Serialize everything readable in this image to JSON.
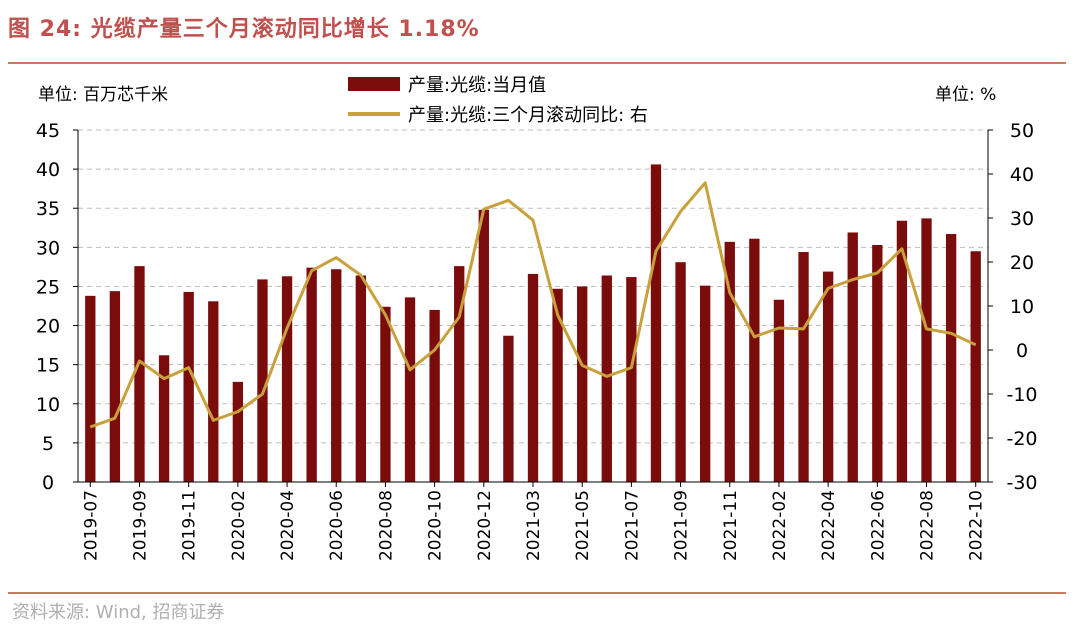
{
  "header": {
    "title": "图 24:  光缆产量三个月滚动同比增长 1.18%",
    "unit_left": "单位:  百万芯千米",
    "unit_right": "单位:  %"
  },
  "footer": {
    "source": "资料来源:  Wind,  招商证券"
  },
  "colors": {
    "bar": "#7b0c0c",
    "line": "#c9a13c",
    "title": "#c0504d",
    "rule": "#c87a5a",
    "grid": "#bfbfbf"
  },
  "chart_data": {
    "type": "bar",
    "title": "光缆产量三个月滚动同比增长 1.18%",
    "categories": [
      "2019-07",
      "2019-08",
      "2019-09",
      "2019-10",
      "2019-11",
      "2019-12",
      "2020-02",
      "2020-03",
      "2020-04",
      "2020-05",
      "2020-06",
      "2020-07",
      "2020-08",
      "2020-09",
      "2020-10",
      "2020-11",
      "2020-12",
      "2021-02",
      "2021-03",
      "2021-04",
      "2021-05",
      "2021-06",
      "2021-07",
      "2021-08",
      "2021-09",
      "2021-10",
      "2021-11",
      "2021-12",
      "2022-02",
      "2022-03",
      "2022-04",
      "2022-05",
      "2022-06",
      "2022-07",
      "2022-08",
      "2022-09",
      "2022-10"
    ],
    "x_tick_labels": [
      "2019-07",
      "2019-09",
      "2019-11",
      "2020-02",
      "2020-04",
      "2020-06",
      "2020-08",
      "2020-10",
      "2020-12",
      "2021-03",
      "2021-05",
      "2021-07",
      "2021-09",
      "2021-11",
      "2022-02",
      "2022-04",
      "2022-06",
      "2022-08",
      "2022-10"
    ],
    "series": [
      {
        "name": "产量:光缆:当月值",
        "kind": "bar",
        "axis": "left",
        "values": [
          23.8,
          24.4,
          27.6,
          16.2,
          24.3,
          23.1,
          12.8,
          25.9,
          26.3,
          27.4,
          27.2,
          26.4,
          22.4,
          23.6,
          22.0,
          27.6,
          34.8,
          18.7,
          26.6,
          24.7,
          25.0,
          26.4,
          26.2,
          40.6,
          28.1,
          25.1,
          30.7,
          31.1,
          23.3,
          29.4,
          26.9,
          31.9,
          30.3,
          33.4,
          33.7,
          31.7,
          29.5
        ]
      },
      {
        "name": "产量:光缆:三个月滚动同比:  右",
        "kind": "line",
        "axis": "right",
        "values": [
          -17.5,
          -15.5,
          -2.5,
          -6.5,
          -4.0,
          -16.0,
          -14.0,
          -10.0,
          5.0,
          18.0,
          21.0,
          17.0,
          8.0,
          -4.5,
          0.0,
          7.5,
          32.0,
          34.0,
          29.5,
          8.0,
          -3.5,
          -6.0,
          -4.0,
          22.5,
          31.5,
          38.0,
          13.0,
          3.0,
          5.0,
          4.8,
          14.0,
          16.0,
          17.5,
          23.0,
          4.8,
          3.8,
          1.18
        ]
      }
    ],
    "y_left": {
      "label": "单位:  百万芯千米",
      "lim": [
        0,
        45
      ],
      "ticks": [
        0,
        5,
        10,
        15,
        20,
        25,
        30,
        35,
        40,
        45
      ]
    },
    "y_right": {
      "label": "单位:  %",
      "lim": [
        -30,
        50
      ],
      "ticks": [
        -30,
        -20,
        -10,
        0,
        10,
        20,
        30,
        40,
        50
      ]
    },
    "grid": "horizontal dashed",
    "legend": "top-center"
  }
}
